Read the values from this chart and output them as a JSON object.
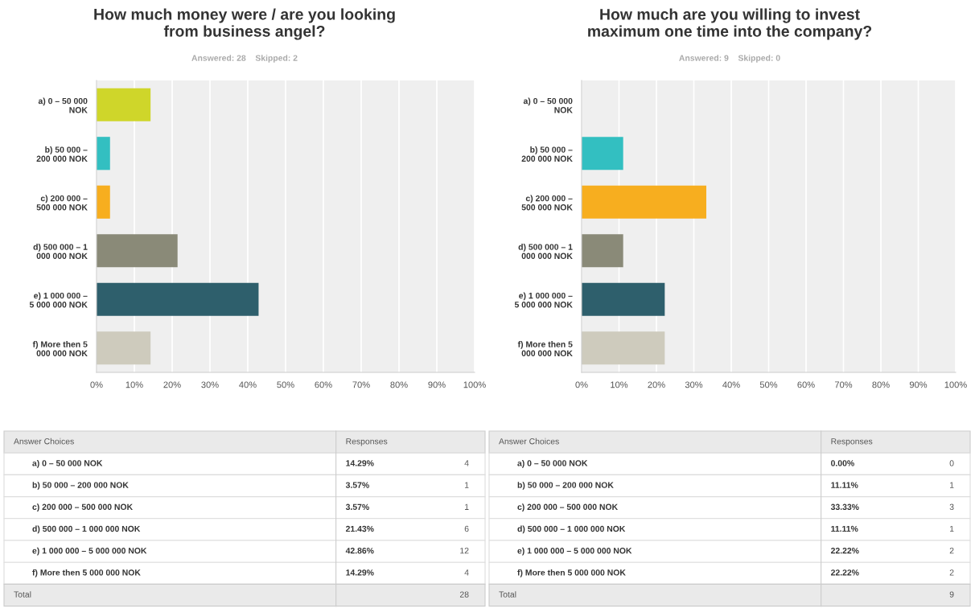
{
  "chart_data": [
    {
      "type": "bar",
      "orientation": "horizontal",
      "title": "How much money were / are you looking\nfrom business angel?",
      "subtitle": "Answered: 28    Skipped: 2",
      "categories": [
        "a) 0 – 50 000\nNOK",
        "b) 50 000 –\n200 000 NOK",
        "c) 200 000 –\n500 000 NOK",
        "d) 500 000 – 1\n000 000 NOK",
        "e) 1 000 000 –\n5 000 000 NOK",
        "f) More then 5\n000 000 NOK"
      ],
      "values": [
        14.29,
        3.57,
        3.57,
        21.43,
        42.86,
        14.29
      ],
      "colors": [
        "#cfd62a",
        "#33bfc1",
        "#f7ae1f",
        "#8a8a78",
        "#2e5f6c",
        "#cecbbd"
      ],
      "xlim": [
        0,
        100
      ],
      "xticks": [
        {
          "value": 0,
          "label": "0%"
        },
        {
          "value": 10,
          "label": "10%"
        },
        {
          "value": 20,
          "label": "20%"
        },
        {
          "value": 30,
          "label": "30%"
        },
        {
          "value": 40,
          "label": "40%"
        },
        {
          "value": 50,
          "label": "50%"
        },
        {
          "value": 60,
          "label": "60%"
        },
        {
          "value": 70,
          "label": "70%"
        },
        {
          "value": 80,
          "label": "80%"
        },
        {
          "value": 90,
          "label": "90%"
        },
        {
          "value": 100,
          "label": "100%"
        }
      ],
      "grid": "x",
      "annotations": [
        "Answer Choices",
        "Responses",
        "14.29%",
        "3.57%",
        "3.57%",
        "21.43%",
        "42.86%",
        "14.29%",
        "4",
        "1",
        "1",
        "6",
        "12",
        "4",
        "Total",
        "28"
      ]
    },
    {
      "type": "bar",
      "orientation": "horizontal",
      "title": "How much are you willing to invest\nmaximum one time into the company?",
      "subtitle": "Answered: 9    Skipped: 0",
      "categories": [
        "a) 0 – 50 000\nNOK",
        "b) 50 000 –\n200 000 NOK",
        "c) 200 000 –\n500 000 NOK",
        "d) 500 000 – 1\n000 000 NOK",
        "e) 1 000 000 –\n5 000 000 NOK",
        "f) More then 5\n000 000 NOK"
      ],
      "values": [
        0,
        11.11,
        33.33,
        11.11,
        22.22,
        22.22
      ],
      "colors": [
        "#cfd62a",
        "#33bfc1",
        "#f7ae1f",
        "#8a8a78",
        "#2e5f6c",
        "#cecbbd"
      ],
      "xlim": [
        0,
        100
      ],
      "xticks": [
        {
          "value": 0,
          "label": "0%"
        },
        {
          "value": 10,
          "label": "10%"
        },
        {
          "value": 20,
          "label": "20%"
        },
        {
          "value": 30,
          "label": "30%"
        },
        {
          "value": 40,
          "label": "40%"
        },
        {
          "value": 50,
          "label": "50%"
        },
        {
          "value": 60,
          "label": "60%"
        },
        {
          "value": 70,
          "label": "70%"
        },
        {
          "value": 80,
          "label": "80%"
        },
        {
          "value": 90,
          "label": "90%"
        },
        {
          "value": 100,
          "label": "100%"
        }
      ],
      "grid": "x",
      "annotations": [
        "Answer Choices",
        "Responses",
        "0.00%",
        "11.11%",
        "33.33%",
        "11.11%",
        "22.22%",
        "22.22%",
        "0",
        "1",
        "3",
        "1",
        "2",
        "2",
        "Total",
        "9"
      ]
    }
  ]
}
